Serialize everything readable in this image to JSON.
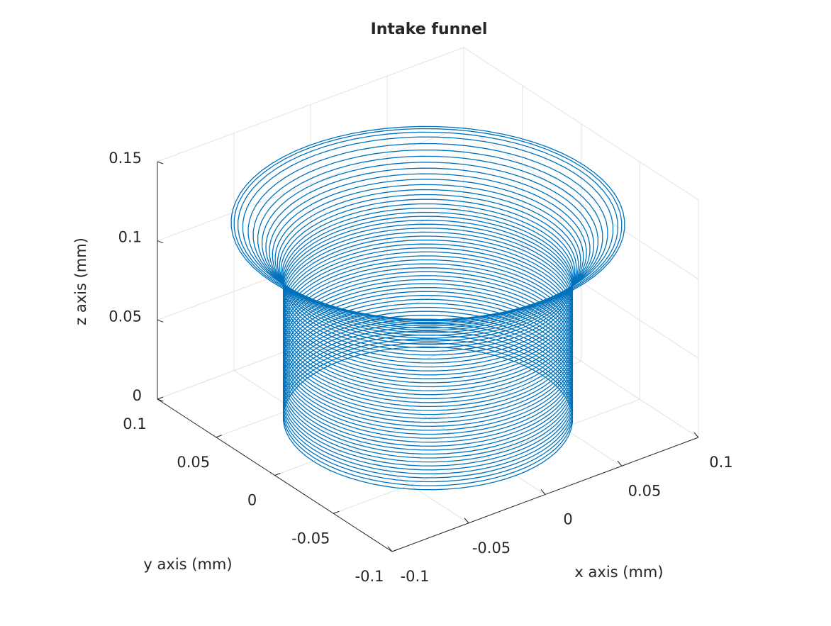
{
  "chart_data": {
    "type": "surface3d",
    "title": "Intake funnel",
    "xlabel": "x axis (mm)",
    "ylabel": "y axis (mm)",
    "zlabel": "z axis (mm)",
    "xlim": [
      -0.1,
      0.1
    ],
    "ylim": [
      -0.1,
      0.1
    ],
    "zlim": [
      0,
      0.15
    ],
    "xticks": [
      -0.1,
      -0.05,
      0,
      0.05,
      0.1
    ],
    "yticks": [
      -0.1,
      -0.05,
      0,
      0.05,
      0.1
    ],
    "zticks": [
      0,
      0.05,
      0.1,
      0.15
    ],
    "grid": true,
    "series": [
      {
        "color": "#0072bd",
        "z": [
          0,
          0.0025,
          0.005,
          0.0075,
          0.01,
          0.0125,
          0.015,
          0.0175,
          0.02,
          0.0225,
          0.025,
          0.0275,
          0.03,
          0.0325,
          0.035,
          0.0375,
          0.04,
          0.0425,
          0.045,
          0.0475,
          0.05,
          0.0525,
          0.055,
          0.0575,
          0.06,
          0.0625,
          0.065,
          0.0675,
          0.07,
          0.0725,
          0.075,
          0.0775,
          0.08,
          0.0825,
          0.085,
          0.0875,
          0.09,
          0.0925,
          0.095,
          0.0975,
          0.1,
          0.1025,
          0.105,
          0.1075,
          0.11,
          0.1125,
          0.115,
          0.1175,
          0.12,
          0.1215,
          0.1225,
          0.123
        ],
        "radius": [
          0.075,
          0.075,
          0.075,
          0.075,
          0.075,
          0.075,
          0.075,
          0.075,
          0.075,
          0.075,
          0.075,
          0.075,
          0.075,
          0.075,
          0.075,
          0.075,
          0.075,
          0.075,
          0.075,
          0.075,
          0.075,
          0.075,
          0.075,
          0.075,
          0.075,
          0.075,
          0.075,
          0.075,
          0.075,
          0.075,
          0.075,
          0.075,
          0.075,
          0.075,
          0.075,
          0.0752,
          0.0756,
          0.0762,
          0.077,
          0.078,
          0.0792,
          0.0806,
          0.0822,
          0.084,
          0.086,
          0.0882,
          0.0906,
          0.0932,
          0.096,
          0.0985,
          0.1005,
          0.102
        ]
      }
    ]
  }
}
